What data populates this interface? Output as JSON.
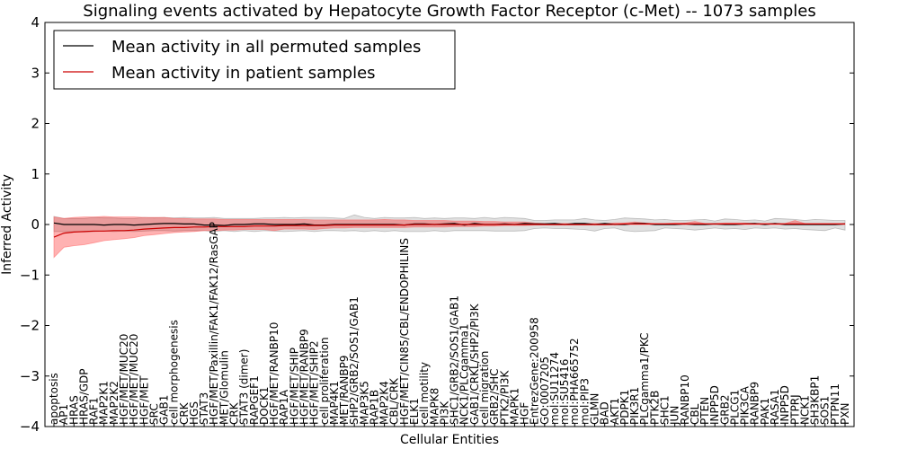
{
  "chart_data": {
    "type": "line",
    "title": "Signaling events activated by Hepatocyte Growth Factor Receptor (c-Met) -- 1073 samples",
    "xlabel": "Cellular Entities",
    "ylabel": "Inferred Activity",
    "ylim": [
      -4,
      4
    ],
    "yticks": [
      4,
      3,
      2,
      1,
      0,
      -1,
      -2,
      -3,
      -4
    ],
    "yticks_labels": [
      "4",
      "3",
      "2",
      "1",
      "0",
      "−1",
      "−2",
      "−3",
      "−4"
    ],
    "legend_position": "top-left",
    "grid": false,
    "categories": [
      "apoptosis",
      "AP1",
      "HRAS",
      "HRAS/GDP",
      "RAF1",
      "MAP2K1",
      "MAP2K2",
      "HGF/MET/MUC20",
      "HGF/MET/MUC20",
      "HGF/MET",
      "SRC",
      "GAB1",
      "cell morphogenesis",
      "CRK",
      "HGS",
      "STAT3",
      "HGF/MET/Paxillin/FAK1/FAK12/RasGAP",
      "MET/Glomulin",
      "CRK",
      "STAT3 (dimer)",
      "RAPGEF1",
      "DOCK1",
      "HGF/MET/RANBP10",
      "RAP1A",
      "HGF/MET/SHIP",
      "HGF/MET/RANBP9",
      "HGF/MET/SHIP2",
      "cell proliferation",
      "MAP4K1",
      "MET/RANBP9",
      "SHP2/GRB2/SOS1/GAB1",
      "MAP3K5",
      "RAP1B",
      "MAP2K4",
      "CBL/CRK",
      "HGF/MET/CIN85/CBL/ENDOPHILINS",
      "ELK1",
      "cell motility",
      "MAPK8",
      "PI3K",
      "SHC1/GRB2/SOS1/GAB1",
      "NCK1/PLCgamma1",
      "GAB1/CRKL/SHP2/PI3K",
      "cell migration",
      "GRB2/SHC",
      "PTK2/PI3K",
      "MAPK1",
      "HGF",
      "EntrezGene:200958",
      "GO:0007205",
      "mol:SU11274",
      "mol:SU5416",
      "mol:PHA665752",
      "mol:PIP3",
      "GLMN",
      "BAD",
      "AKT1",
      "PDPK1",
      "PIK3R1",
      "PLCgamma1/PKC",
      "PTK2B",
      "SHC1",
      "JUN",
      "RANBP10",
      "CBL",
      "PTEN",
      "INPP5D",
      "GRB2",
      "PLCG1",
      "PIK3CA",
      "RANBP9",
      "PAK1",
      "RASA1",
      "INPP5D",
      "PTPRJ",
      "NCK1",
      "SH3KBP1",
      "SOS1",
      "PTPN11",
      "PXN"
    ],
    "series": [
      {
        "name": "Mean activity in all permuted samples",
        "color": "#000000",
        "values": [
          0.03,
          0.0,
          0.0,
          0.0,
          0.0,
          -0.01,
          0.0,
          0.0,
          -0.01,
          0.0,
          0.01,
          0.02,
          0.02,
          0.01,
          0.01,
          -0.01,
          -0.01,
          -0.02,
          0.0,
          0.0,
          0.01,
          0.01,
          0.0,
          0.0,
          0.0,
          0.01,
          -0.01,
          -0.01,
          0.0,
          0.0,
          0.0,
          0.0,
          0.0,
          0.0,
          0.0,
          -0.01,
          0.01,
          0.01,
          0.0,
          0.01,
          0.02,
          -0.01,
          0.02,
          0.0,
          0.0,
          0.01,
          0.0,
          0.02,
          0.01,
          0.01,
          0.02,
          0.0,
          0.02,
          0.02,
          0.0,
          0.02,
          0.0,
          0.0,
          0.02,
          0.02,
          0.0,
          0.0,
          0.0,
          0.01,
          0.0,
          0.0,
          0.01,
          0.0,
          0.0,
          0.01,
          0.02,
          0.0,
          0.02,
          0.0,
          0.0,
          0.0,
          0.0,
          0.0,
          0.0,
          0.01
        ],
        "band_lower": [
          -0.14,
          -0.14,
          -0.14,
          -0.15,
          -0.14,
          -0.13,
          -0.14,
          -0.13,
          -0.14,
          -0.13,
          -0.12,
          -0.12,
          -0.13,
          -0.12,
          -0.12,
          -0.12,
          -0.14,
          -0.12,
          -0.14,
          -0.12,
          -0.14,
          -0.12,
          -0.13,
          -0.14,
          -0.13,
          -0.12,
          -0.14,
          -0.12,
          -0.12,
          -0.13,
          -0.12,
          -0.14,
          -0.12,
          -0.14,
          -0.12,
          -0.14,
          -0.14,
          -0.14,
          -0.12,
          -0.14,
          -0.12,
          -0.12,
          -0.12,
          -0.12,
          -0.13,
          -0.13,
          -0.13,
          -0.12,
          -0.08,
          -0.07,
          -0.08,
          -0.08,
          -0.09,
          -0.1,
          -0.13,
          -0.08,
          -0.07,
          -0.12,
          -0.14,
          -0.13,
          -0.12,
          -0.07,
          -0.08,
          -0.09,
          -0.11,
          -0.09,
          -0.07,
          -0.09,
          -0.08,
          -0.1,
          -0.07,
          -0.08,
          -0.07,
          -0.09,
          -0.08,
          -0.1,
          -0.11,
          -0.12,
          -0.07,
          -0.11
        ],
        "band_upper": [
          0.16,
          0.12,
          0.12,
          0.12,
          0.14,
          0.13,
          0.13,
          0.12,
          0.12,
          0.14,
          0.13,
          0.14,
          0.13,
          0.14,
          0.13,
          0.13,
          0.14,
          0.12,
          0.12,
          0.12,
          0.12,
          0.13,
          0.13,
          0.14,
          0.13,
          0.14,
          0.14,
          0.14,
          0.13,
          0.12,
          0.19,
          0.14,
          0.12,
          0.14,
          0.13,
          0.13,
          0.14,
          0.12,
          0.13,
          0.12,
          0.13,
          0.13,
          0.12,
          0.14,
          0.12,
          0.14,
          0.13,
          0.12,
          0.08,
          0.08,
          0.09,
          0.09,
          0.09,
          0.12,
          0.09,
          0.08,
          0.1,
          0.13,
          0.12,
          0.11,
          0.09,
          0.1,
          0.08,
          0.08,
          0.09,
          0.1,
          0.07,
          0.11,
          0.1,
          0.08,
          0.09,
          0.07,
          0.12,
          0.11,
          0.1,
          0.08,
          0.1,
          0.09,
          0.08,
          0.08
        ]
      },
      {
        "name": "Mean activity in patient samples",
        "color": "#cc0000",
        "band_color": "#ff0000",
        "values": [
          -0.25,
          -0.17,
          -0.15,
          -0.14,
          -0.13,
          -0.13,
          -0.12,
          -0.12,
          -0.11,
          -0.09,
          -0.08,
          -0.07,
          -0.06,
          -0.06,
          -0.05,
          -0.05,
          -0.04,
          -0.04,
          -0.04,
          -0.04,
          -0.03,
          -0.03,
          -0.03,
          -0.02,
          -0.02,
          -0.02,
          -0.02,
          -0.02,
          -0.01,
          -0.01,
          -0.01,
          -0.01,
          -0.01,
          -0.01,
          -0.01,
          -0.01,
          0.0,
          0.0,
          0.0,
          0.0,
          0.0,
          0.0,
          0.0,
          0.0,
          0.0,
          0.0,
          0.0,
          0.0,
          0.0,
          0.0,
          0.0,
          0.0,
          0.0,
          0.0,
          0.0,
          0.0,
          0.0,
          0.01,
          0.01,
          0.01,
          0.01,
          0.01,
          0.01,
          0.01,
          0.01,
          0.01,
          0.01,
          0.01,
          0.01,
          0.01,
          0.01,
          0.01,
          0.01,
          0.01,
          0.01,
          0.01,
          0.01,
          0.01,
          0.01,
          0.01
        ],
        "band_lower": [
          -0.65,
          -0.45,
          -0.42,
          -0.4,
          -0.36,
          -0.32,
          -0.3,
          -0.28,
          -0.26,
          -0.22,
          -0.2,
          -0.18,
          -0.16,
          -0.15,
          -0.14,
          -0.12,
          -0.12,
          -0.11,
          -0.11,
          -0.1,
          -0.1,
          -0.1,
          -0.12,
          -0.09,
          -0.09,
          -0.09,
          -0.1,
          -0.08,
          -0.07,
          -0.07,
          -0.06,
          -0.06,
          -0.06,
          -0.06,
          -0.06,
          -0.06,
          -0.05,
          -0.05,
          -0.05,
          -0.05,
          -0.04,
          -0.04,
          -0.04,
          -0.03,
          -0.03,
          -0.02,
          -0.02,
          -0.02,
          -0.01,
          -0.01,
          -0.01,
          -0.01,
          -0.01,
          -0.01,
          -0.01,
          -0.01,
          0.0,
          0.0,
          0.0,
          0.0,
          0.0,
          0.0,
          0.0,
          0.0,
          0.0,
          0.0,
          0.0,
          0.0,
          0.0,
          0.0,
          0.0,
          0.0,
          0.0,
          0.0,
          0.0,
          0.0,
          0.0,
          0.0,
          0.0,
          0.0
        ],
        "band_upper": [
          0.15,
          0.12,
          0.14,
          0.15,
          0.15,
          0.16,
          0.15,
          0.15,
          0.15,
          0.14,
          0.14,
          0.14,
          0.12,
          0.12,
          0.11,
          0.11,
          0.11,
          0.1,
          0.1,
          0.1,
          0.1,
          0.1,
          0.1,
          0.1,
          0.1,
          0.1,
          0.09,
          0.09,
          0.09,
          0.09,
          0.09,
          0.09,
          0.09,
          0.1,
          0.09,
          0.09,
          0.08,
          0.08,
          0.08,
          0.08,
          0.07,
          0.07,
          0.07,
          0.06,
          0.06,
          0.05,
          0.05,
          0.05,
          0.03,
          0.02,
          0.02,
          0.02,
          0.02,
          0.02,
          0.02,
          0.02,
          0.03,
          0.03,
          0.05,
          0.03,
          0.02,
          0.02,
          0.03,
          0.03,
          0.06,
          0.02,
          0.02,
          0.03,
          0.03,
          0.03,
          0.02,
          0.02,
          0.02,
          0.02,
          0.08,
          0.02,
          0.02,
          0.02,
          0.02,
          0.02
        ]
      }
    ]
  }
}
